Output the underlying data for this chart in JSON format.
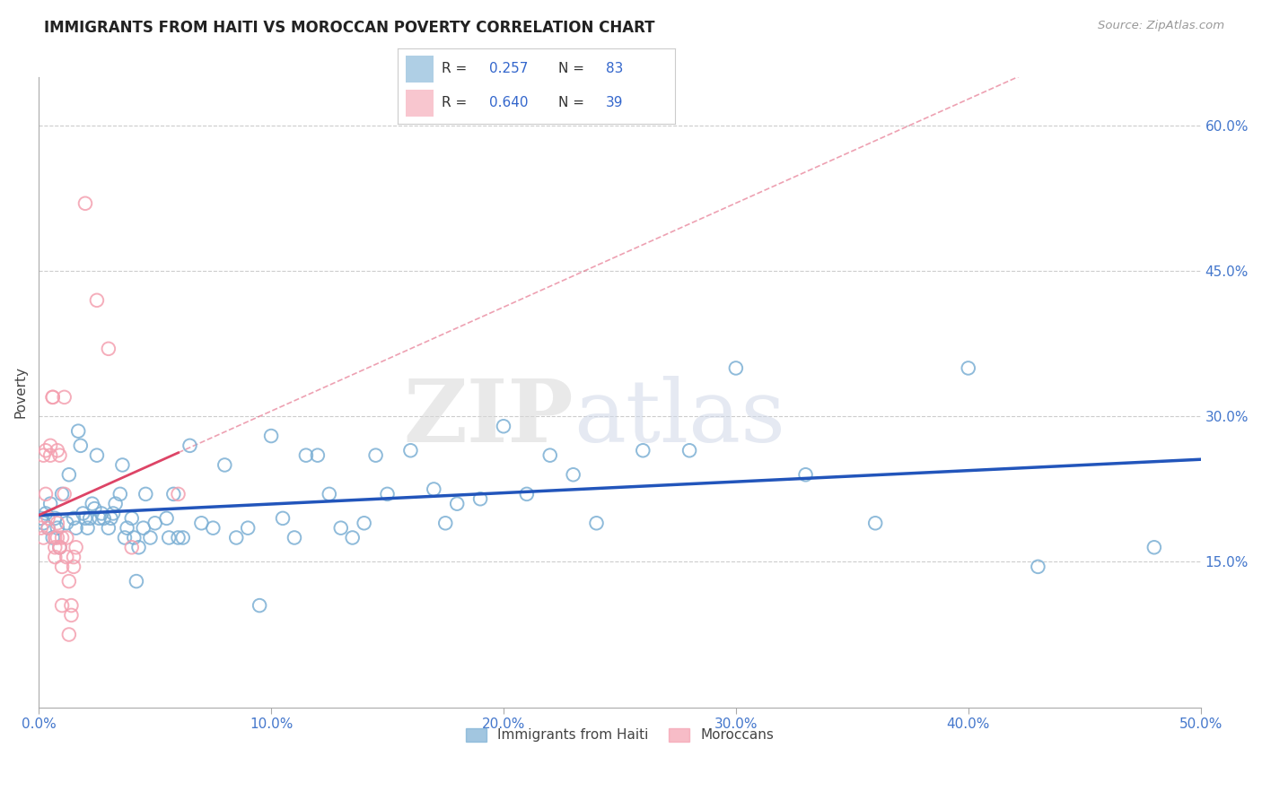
{
  "title": "IMMIGRANTS FROM HAITI VS MOROCCAN POVERTY CORRELATION CHART",
  "source_text": "Source: ZipAtlas.com",
  "ylabel": "Poverty",
  "xlim": [
    0,
    0.5
  ],
  "ylim": [
    0,
    0.65
  ],
  "xtick_labels": [
    "0.0%",
    "10.0%",
    "20.0%",
    "30.0%",
    "40.0%",
    "50.0%"
  ],
  "xtick_vals": [
    0.0,
    0.1,
    0.2,
    0.3,
    0.4,
    0.5
  ],
  "ytick_labels": [
    "15.0%",
    "30.0%",
    "45.0%",
    "60.0%"
  ],
  "ytick_vals": [
    0.15,
    0.3,
    0.45,
    0.6
  ],
  "legend_labels": [
    "Immigrants from Haiti",
    "Moroccans"
  ],
  "haiti_color": "#7BAFD4",
  "morocco_color": "#F4A0B0",
  "haiti_R": "0.257",
  "haiti_N": "83",
  "morocco_R": "0.640",
  "morocco_N": "39",
  "haiti_trendline_color": "#2255BB",
  "morocco_trendline_color": "#DD4466",
  "background_color": "#FFFFFF",
  "watermark_text": "ZIPatlas",
  "haiti_scatter": [
    [
      0.001,
      0.195
    ],
    [
      0.002,
      0.19
    ],
    [
      0.003,
      0.2
    ],
    [
      0.004,
      0.185
    ],
    [
      0.005,
      0.21
    ],
    [
      0.006,
      0.175
    ],
    [
      0.007,
      0.195
    ],
    [
      0.008,
      0.185
    ],
    [
      0.009,
      0.165
    ],
    [
      0.01,
      0.22
    ],
    [
      0.012,
      0.19
    ],
    [
      0.013,
      0.24
    ],
    [
      0.015,
      0.195
    ],
    [
      0.016,
      0.185
    ],
    [
      0.017,
      0.285
    ],
    [
      0.018,
      0.27
    ],
    [
      0.019,
      0.2
    ],
    [
      0.02,
      0.195
    ],
    [
      0.021,
      0.185
    ],
    [
      0.022,
      0.195
    ],
    [
      0.023,
      0.21
    ],
    [
      0.024,
      0.205
    ],
    [
      0.025,
      0.26
    ],
    [
      0.026,
      0.195
    ],
    [
      0.027,
      0.2
    ],
    [
      0.028,
      0.195
    ],
    [
      0.03,
      0.185
    ],
    [
      0.031,
      0.195
    ],
    [
      0.032,
      0.2
    ],
    [
      0.033,
      0.21
    ],
    [
      0.035,
      0.22
    ],
    [
      0.036,
      0.25
    ],
    [
      0.037,
      0.175
    ],
    [
      0.038,
      0.185
    ],
    [
      0.04,
      0.195
    ],
    [
      0.041,
      0.175
    ],
    [
      0.042,
      0.13
    ],
    [
      0.043,
      0.165
    ],
    [
      0.045,
      0.185
    ],
    [
      0.046,
      0.22
    ],
    [
      0.048,
      0.175
    ],
    [
      0.05,
      0.19
    ],
    [
      0.055,
      0.195
    ],
    [
      0.056,
      0.175
    ],
    [
      0.058,
      0.22
    ],
    [
      0.06,
      0.175
    ],
    [
      0.062,
      0.175
    ],
    [
      0.065,
      0.27
    ],
    [
      0.07,
      0.19
    ],
    [
      0.075,
      0.185
    ],
    [
      0.08,
      0.25
    ],
    [
      0.085,
      0.175
    ],
    [
      0.09,
      0.185
    ],
    [
      0.095,
      0.105
    ],
    [
      0.1,
      0.28
    ],
    [
      0.105,
      0.195
    ],
    [
      0.11,
      0.175
    ],
    [
      0.115,
      0.26
    ],
    [
      0.12,
      0.26
    ],
    [
      0.125,
      0.22
    ],
    [
      0.13,
      0.185
    ],
    [
      0.135,
      0.175
    ],
    [
      0.14,
      0.19
    ],
    [
      0.145,
      0.26
    ],
    [
      0.15,
      0.22
    ],
    [
      0.16,
      0.265
    ],
    [
      0.17,
      0.225
    ],
    [
      0.175,
      0.19
    ],
    [
      0.18,
      0.21
    ],
    [
      0.19,
      0.215
    ],
    [
      0.2,
      0.29
    ],
    [
      0.21,
      0.22
    ],
    [
      0.22,
      0.26
    ],
    [
      0.23,
      0.24
    ],
    [
      0.24,
      0.19
    ],
    [
      0.26,
      0.265
    ],
    [
      0.28,
      0.265
    ],
    [
      0.3,
      0.35
    ],
    [
      0.33,
      0.24
    ],
    [
      0.36,
      0.19
    ],
    [
      0.4,
      0.35
    ],
    [
      0.43,
      0.145
    ],
    [
      0.48,
      0.165
    ]
  ],
  "morocco_scatter": [
    [
      0.001,
      0.185
    ],
    [
      0.002,
      0.175
    ],
    [
      0.002,
      0.26
    ],
    [
      0.003,
      0.265
    ],
    [
      0.003,
      0.22
    ],
    [
      0.004,
      0.195
    ],
    [
      0.004,
      0.185
    ],
    [
      0.005,
      0.27
    ],
    [
      0.005,
      0.26
    ],
    [
      0.006,
      0.32
    ],
    [
      0.006,
      0.32
    ],
    [
      0.007,
      0.155
    ],
    [
      0.007,
      0.175
    ],
    [
      0.007,
      0.165
    ],
    [
      0.008,
      0.19
    ],
    [
      0.008,
      0.265
    ],
    [
      0.008,
      0.175
    ],
    [
      0.009,
      0.165
    ],
    [
      0.009,
      0.26
    ],
    [
      0.009,
      0.165
    ],
    [
      0.01,
      0.145
    ],
    [
      0.01,
      0.105
    ],
    [
      0.01,
      0.175
    ],
    [
      0.011,
      0.22
    ],
    [
      0.011,
      0.32
    ],
    [
      0.012,
      0.155
    ],
    [
      0.012,
      0.175
    ],
    [
      0.013,
      0.13
    ],
    [
      0.013,
      0.075
    ],
    [
      0.014,
      0.095
    ],
    [
      0.014,
      0.105
    ],
    [
      0.015,
      0.155
    ],
    [
      0.015,
      0.145
    ],
    [
      0.016,
      0.165
    ],
    [
      0.02,
      0.52
    ],
    [
      0.025,
      0.42
    ],
    [
      0.03,
      0.37
    ],
    [
      0.04,
      0.165
    ],
    [
      0.06,
      0.22
    ]
  ]
}
